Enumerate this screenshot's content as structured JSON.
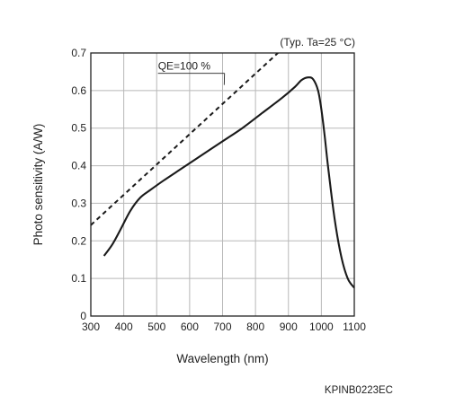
{
  "chart_data": {
    "type": "line",
    "title": "",
    "condition_note": "(Typ. Ta=25 °C)",
    "xlabel": "Wavelength (nm)",
    "ylabel": "Photo sensitivity (A/W)",
    "xlim": [
      300,
      1100
    ],
    "ylim": [
      0,
      0.7
    ],
    "x_ticks": [
      "300",
      "400",
      "500",
      "600",
      "700",
      "800",
      "900",
      "1000",
      "1100"
    ],
    "y_ticks": [
      "0",
      "0.1",
      "0.2",
      "0.3",
      "0.4",
      "0.5",
      "0.6",
      "0.7"
    ],
    "grid": true,
    "series": [
      {
        "name": "",
        "style": "solid",
        "x": [
          340,
          365,
          390,
          420,
          450,
          480,
          520,
          580,
          640,
          700,
          760,
          820,
          880,
          920,
          940,
          960,
          975,
          990,
          1000,
          1010,
          1020,
          1040,
          1060,
          1080,
          1100
        ],
        "y": [
          0.16,
          0.19,
          0.23,
          0.28,
          0.315,
          0.335,
          0.36,
          0.395,
          0.43,
          0.465,
          0.5,
          0.54,
          0.58,
          0.61,
          0.628,
          0.635,
          0.63,
          0.6,
          0.55,
          0.48,
          0.4,
          0.26,
          0.16,
          0.1,
          0.075
        ]
      },
      {
        "name": "QE=100 %",
        "style": "dashed",
        "x": [
          300,
          1100
        ],
        "y": [
          0.242,
          0.887
        ]
      }
    ],
    "annotations": [
      {
        "text": "QE=100 %",
        "x": 635,
        "y": 0.665,
        "points_to": [
          705,
          0.615
        ]
      }
    ]
  },
  "figure_code": "KPINB0223EC"
}
